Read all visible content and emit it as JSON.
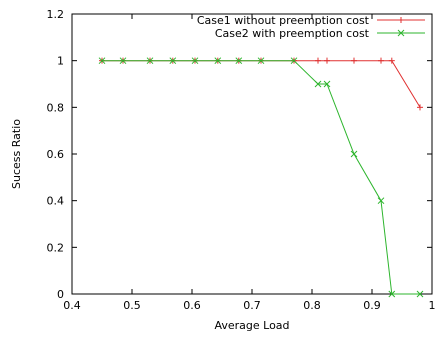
{
  "chart_data": {
    "type": "line",
    "title": "",
    "xlabel": "Average Load",
    "ylabel": "Sucess Ratio",
    "xlim": [
      0.4,
      1.0
    ],
    "ylim": [
      0,
      1.2
    ],
    "x_ticks": [
      0.4,
      0.5,
      0.6,
      0.7,
      0.8,
      0.9,
      1.0
    ],
    "x_tick_labels": [
      "0.4",
      "0.5",
      "0.6",
      "0.7",
      "0.8",
      "0.9",
      "1"
    ],
    "y_ticks": [
      0,
      0.2,
      0.4,
      0.6,
      0.8,
      1.0,
      1.2
    ],
    "y_tick_labels": [
      "0",
      "0.2",
      "0.4",
      "0.6",
      "0.8",
      "1",
      "1.2"
    ],
    "grid": false,
    "legend_position": "top-right",
    "series": [
      {
        "name": "Case1 without preemption cost",
        "color": "#e03030",
        "marker": "plus",
        "x": [
          0.45,
          0.485,
          0.53,
          0.568,
          0.605,
          0.643,
          0.678,
          0.715,
          0.77,
          0.81,
          0.825,
          0.87,
          0.915,
          0.933,
          0.98
        ],
        "y": [
          1.0,
          1.0,
          1.0,
          1.0,
          1.0,
          1.0,
          1.0,
          1.0,
          1.0,
          1.0,
          1.0,
          1.0,
          1.0,
          1.0,
          0.8
        ]
      },
      {
        "name": "Case2 with preemption cost",
        "color": "#2db52d",
        "marker": "cross",
        "x": [
          0.45,
          0.485,
          0.53,
          0.568,
          0.605,
          0.643,
          0.678,
          0.715,
          0.77,
          0.81,
          0.825,
          0.87,
          0.915,
          0.933,
          0.98
        ],
        "y": [
          1.0,
          1.0,
          1.0,
          1.0,
          1.0,
          1.0,
          1.0,
          1.0,
          1.0,
          0.9,
          0.9,
          0.6,
          0.4,
          0.0,
          0.0
        ]
      }
    ]
  }
}
